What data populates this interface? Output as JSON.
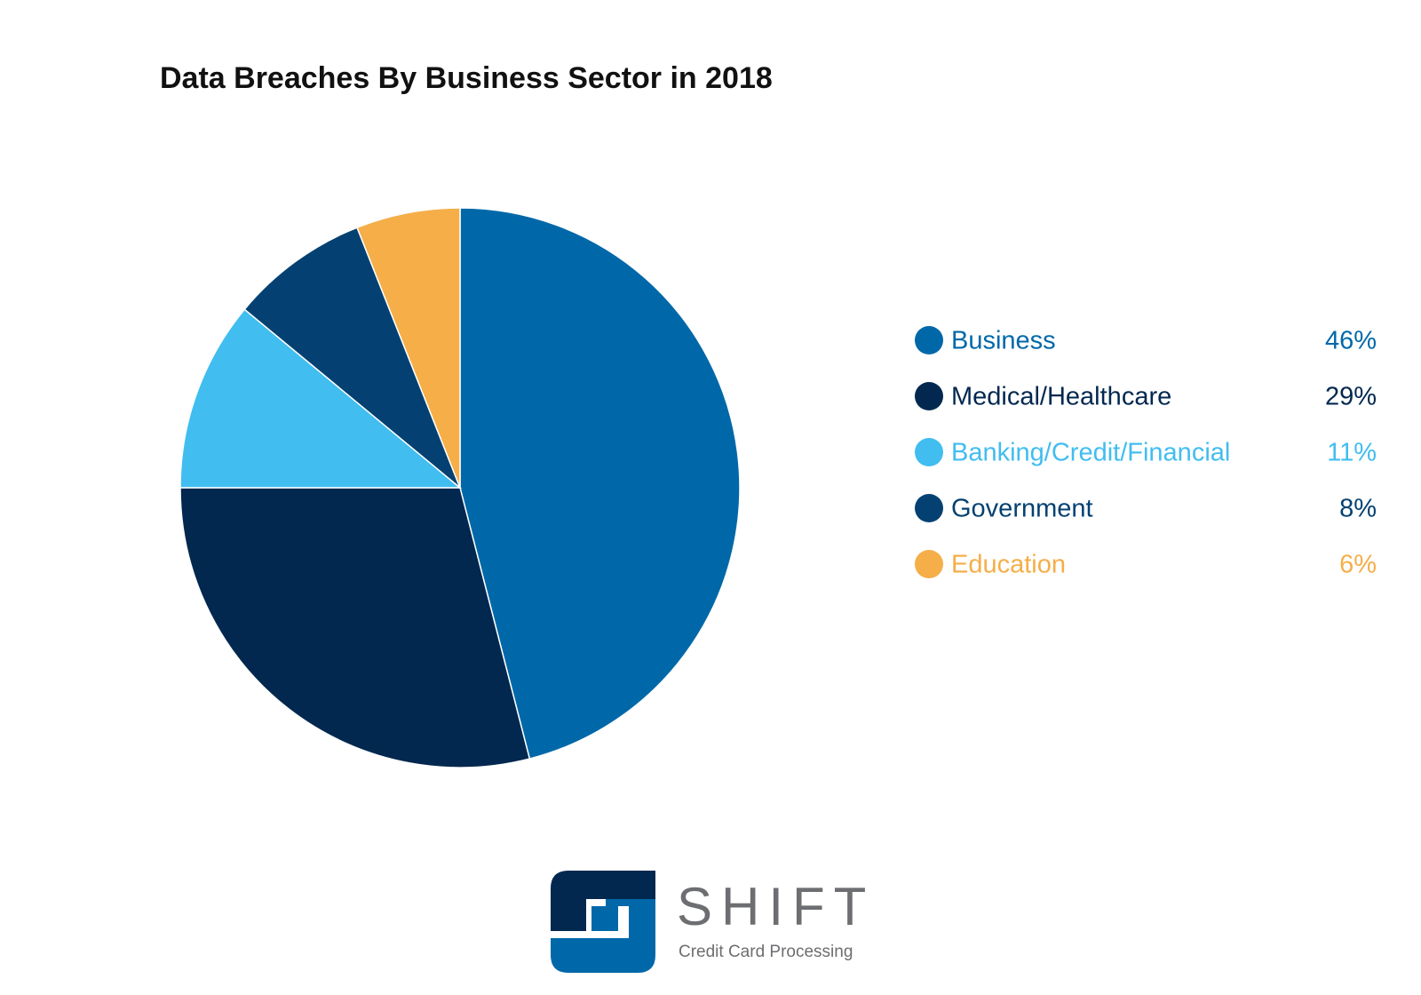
{
  "chart_data": {
    "type": "pie",
    "title": "Data Breaches By Business Sector in 2018",
    "categories": [
      "Business",
      "Medical/Healthcare",
      "Banking/Credit/Financial",
      "Government",
      "Education"
    ],
    "values": [
      46,
      29,
      11,
      8,
      6
    ],
    "value_labels": [
      "46%",
      "29%",
      "11%",
      "8%",
      "6%"
    ],
    "colors": [
      "#0068a9",
      "#02284f",
      "#41bdf0",
      "#044172",
      "#f5ae48"
    ],
    "legend": "right"
  },
  "logo": {
    "name": "SHIFT",
    "tagline": "Credit Card Processing"
  }
}
